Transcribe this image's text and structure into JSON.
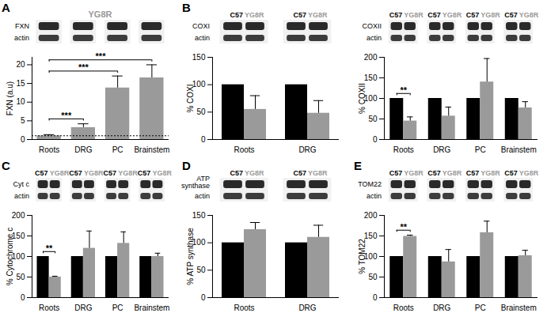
{
  "chart_data": [
    {
      "type": "bar",
      "title": "A",
      "categories": [
        "Roots",
        "DRG",
        "PC",
        "Brainstem"
      ],
      "series": [
        {
          "name": "YG8R",
          "color": "#9a9a9a",
          "values": [
            1,
            3.2,
            13.8,
            16.5
          ],
          "errors": [
            0.3,
            1.0,
            3.2,
            3.5
          ]
        }
      ],
      "ylim": [
        0,
        22
      ],
      "yticks": [
        0,
        5,
        10,
        15,
        20
      ],
      "y_label": "FXN (a.u)",
      "reference_line": 1,
      "annotations": [
        {
          "text": "***",
          "from": "Roots",
          "to": "DRG"
        },
        {
          "text": "***",
          "from": "Roots",
          "to": "PC"
        },
        {
          "text": "***",
          "from": "Roots",
          "to": "Brainstem"
        }
      ],
      "blot_labels": [
        "FXN",
        "actin"
      ]
    },
    {
      "type": "bar",
      "title": "B",
      "categories": [
        "Roots",
        "DRG"
      ],
      "series": [
        {
          "name": "C57",
          "color": "#000000",
          "values": [
            100,
            100
          ]
        },
        {
          "name": "YG8R",
          "color": "#9a9a9a",
          "values": [
            55,
            48
          ],
          "errors": [
            25,
            23
          ]
        }
      ],
      "ylim": [
        0,
        150
      ],
      "yticks": [
        0,
        50,
        100,
        150
      ],
      "y_label": "% COXI",
      "annotations": [],
      "blot_labels": [
        "COXI",
        "actin"
      ]
    },
    {
      "type": "bar",
      "categories": [
        "Roots",
        "DRG",
        "PC",
        "Brainstem"
      ],
      "series": [
        {
          "name": "C57",
          "color": "#000000",
          "values": [
            100,
            100,
            100,
            100
          ]
        },
        {
          "name": "YG8R",
          "color": "#9a9a9a",
          "values": [
            45,
            57,
            140,
            77
          ],
          "errors": [
            10,
            22,
            57,
            15
          ]
        }
      ],
      "ylim": [
        0,
        200
      ],
      "yticks": [
        0,
        50,
        100,
        150,
        200
      ],
      "y_label": "% COXII",
      "annotations": [
        {
          "text": "**",
          "from": "Roots",
          "to": "Roots"
        }
      ],
      "blot_labels": [
        "COXII",
        "actin"
      ]
    },
    {
      "type": "bar",
      "title": "C",
      "categories": [
        "Roots",
        "DRG",
        "PC",
        "Brainstem"
      ],
      "series": [
        {
          "name": "C57",
          "color": "#000000",
          "values": [
            100,
            100,
            100,
            100
          ]
        },
        {
          "name": "YG8R",
          "color": "#9a9a9a",
          "values": [
            50,
            120,
            132,
            100
          ],
          "errors": [
            2,
            42,
            28,
            8
          ]
        }
      ],
      "ylim": [
        0,
        200
      ],
      "yticks": [
        0,
        50,
        100,
        150,
        200
      ],
      "y_label": "% Cytochrome c",
      "annotations": [
        {
          "text": "**",
          "from": "Roots",
          "to": "Roots"
        }
      ],
      "blot_labels": [
        "Cyt c",
        "actin"
      ]
    },
    {
      "type": "bar",
      "title": "D",
      "categories": [
        "Roots",
        "DRG"
      ],
      "series": [
        {
          "name": "C57",
          "color": "#000000",
          "values": [
            100,
            100
          ]
        },
        {
          "name": "YG8R",
          "color": "#9a9a9a",
          "values": [
            124,
            110
          ],
          "errors": [
            13,
            22
          ]
        }
      ],
      "ylim": [
        0,
        150
      ],
      "yticks": [
        0,
        50,
        100,
        150
      ],
      "y_label": "% ATP synthase",
      "annotations": [],
      "blot_labels": [
        "ATP synthase",
        "actin"
      ]
    },
    {
      "type": "bar",
      "title": "E",
      "categories": [
        "Roots",
        "DRG",
        "PC",
        "Brainstem"
      ],
      "series": [
        {
          "name": "C57",
          "color": "#000000",
          "values": [
            100,
            100,
            100,
            100
          ]
        },
        {
          "name": "YG8R",
          "color": "#9a9a9a",
          "values": [
            149,
            87,
            158,
            102
          ],
          "errors": [
            3,
            30,
            28,
            13
          ]
        }
      ],
      "ylim": [
        0,
        200
      ],
      "yticks": [
        0,
        50,
        100,
        150,
        200
      ],
      "y_label": "% TOM22",
      "annotations": [
        {
          "text": "**",
          "from": "Roots",
          "to": "Roots"
        }
      ],
      "blot_labels": [
        "TOM22",
        "actin"
      ]
    }
  ]
}
